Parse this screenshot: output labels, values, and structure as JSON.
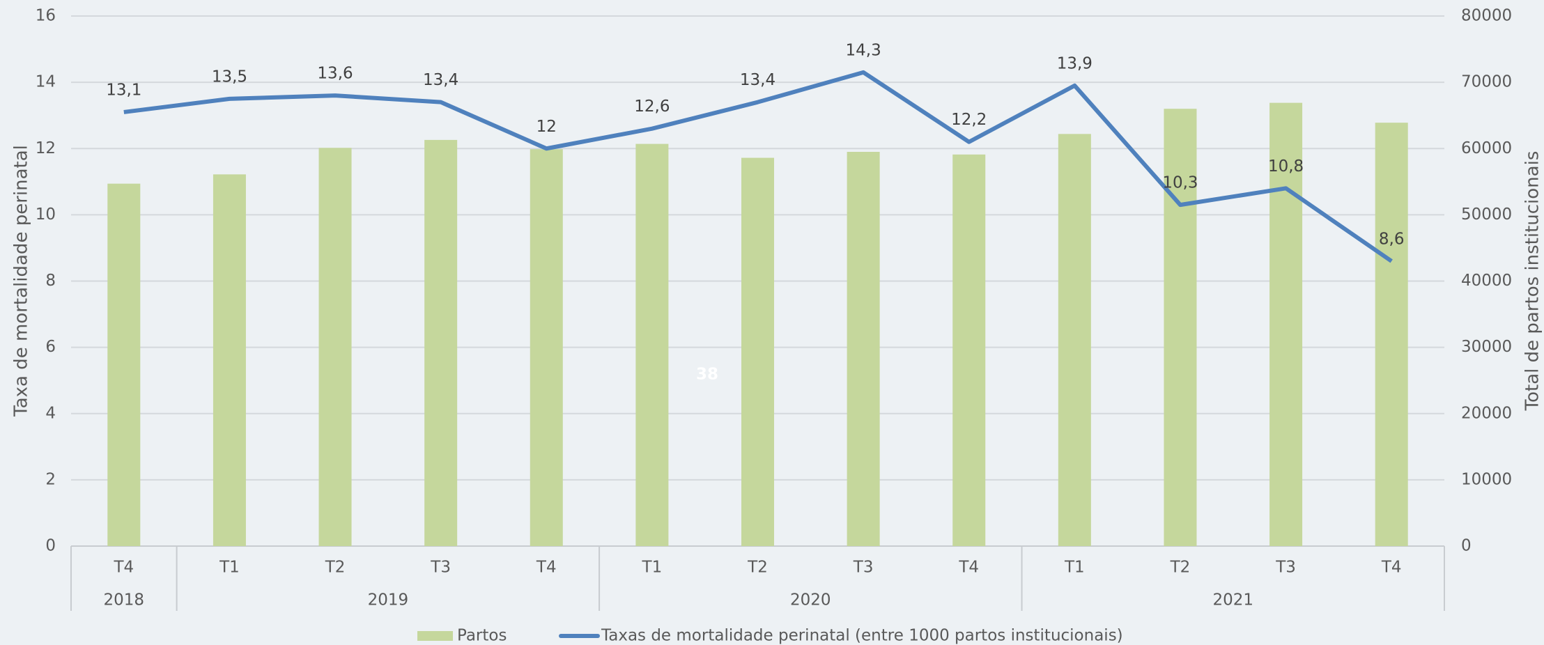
{
  "chart_data": {
    "type": "bar_line",
    "annotation": "38",
    "y_label": "Taxa de mortalidade perinatal",
    "y2_label": "Total de partos institucionais",
    "categories": [
      "T4",
      "T1",
      "T2",
      "T3",
      "T4",
      "T1",
      "T2",
      "T3",
      "T4",
      "T1",
      "T2",
      "T3",
      "T4"
    ],
    "groups": [
      {
        "label": "2018",
        "size": 1
      },
      {
        "label": "2019",
        "size": 4
      },
      {
        "label": "2020",
        "size": 4
      },
      {
        "label": "2021",
        "size": 4
      }
    ],
    "series": [
      {
        "name": "Partos",
        "type": "bar",
        "axis": "y2",
        "color": "#c5d79c",
        "values": [
          54700,
          56100,
          60100,
          61300,
          59900,
          60700,
          58600,
          59500,
          59100,
          62200,
          66000,
          66900,
          63900
        ]
      },
      {
        "name": "Taxas de mortalidade perinatal (entre 1000 partos institucionais)",
        "type": "line",
        "axis": "y",
        "color": "#4f81bd",
        "values": [
          13.1,
          13.5,
          13.6,
          13.4,
          12,
          12.6,
          13.4,
          14.3,
          12.2,
          13.9,
          10.3,
          10.8,
          8.6
        ],
        "value_labels": [
          "13,1",
          "13,5",
          "13,6",
          "13,4",
          "12",
          "12,6",
          "13,4",
          "14,3",
          "12,2",
          "13,9",
          "10,3",
          "10,8",
          "8,6"
        ]
      }
    ],
    "ylim": [
      0,
      16
    ],
    "yticks": [
      0,
      2,
      4,
      6,
      8,
      10,
      12,
      14,
      16
    ],
    "y2lim": [
      0,
      80000
    ],
    "y2ticks": [
      0,
      10000,
      20000,
      30000,
      40000,
      50000,
      60000,
      70000,
      80000
    ],
    "grid": true,
    "legend": "bottom"
  }
}
